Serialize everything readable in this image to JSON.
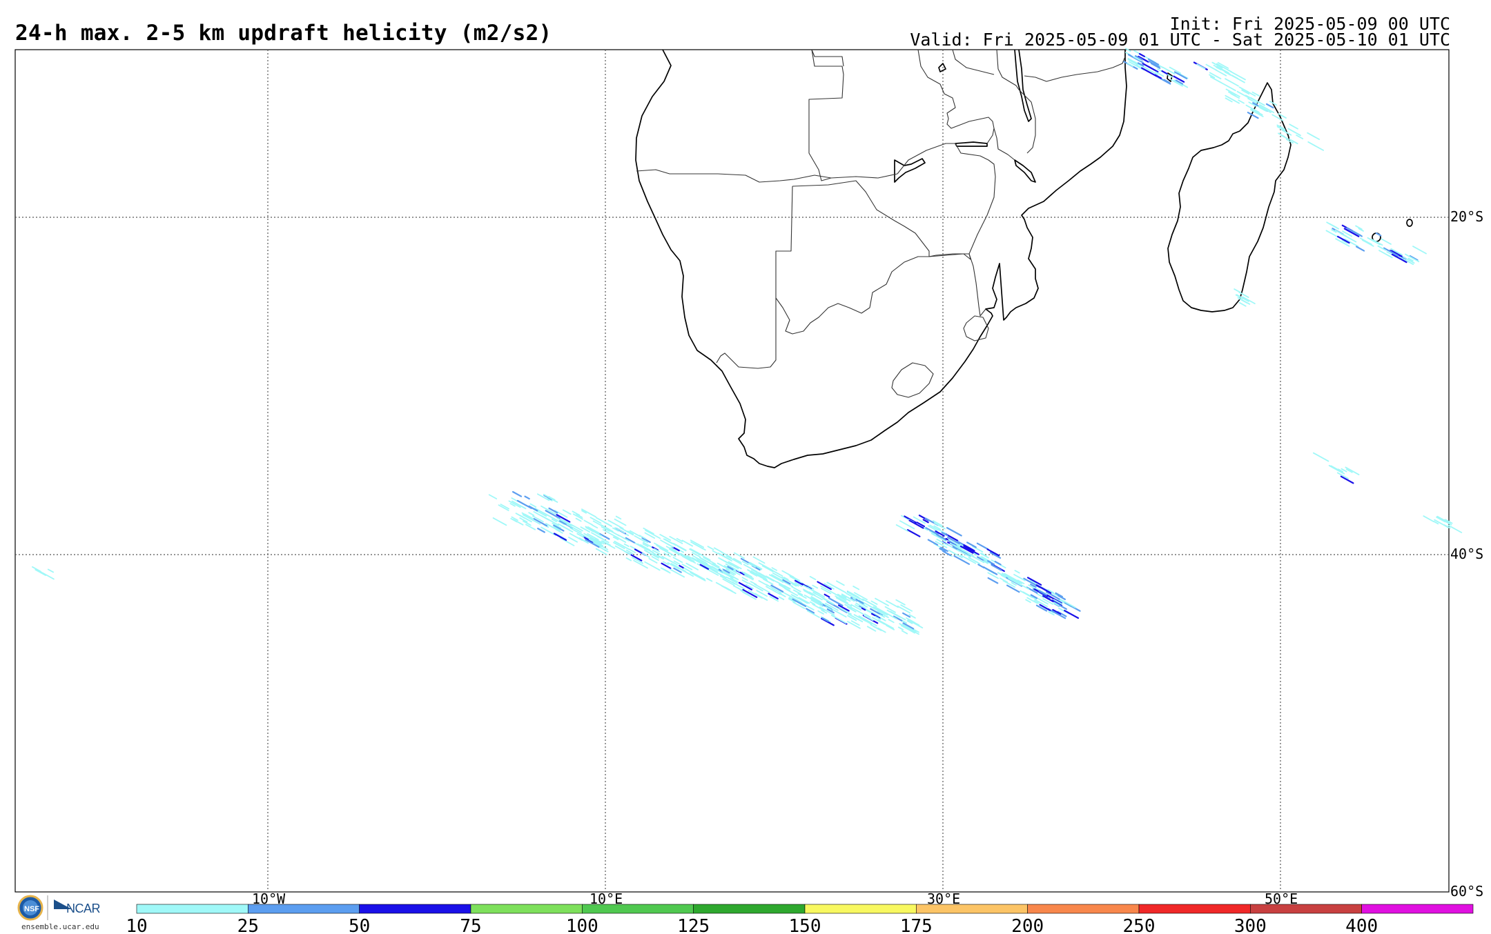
{
  "header": {
    "title": "24-h max. 2-5 km updraft helicity (m2/s2)",
    "init": "Init: Fri 2025-05-09 00 UTC",
    "valid": "Valid: Fri 2025-05-09 01 UTC - Sat 2025-05-10 01 UTC"
  },
  "map": {
    "lon_labels": [
      "10°W",
      "10°E",
      "30°E",
      "50°E"
    ],
    "lat_labels": [
      "20°S",
      "40°S",
      "60°S"
    ]
  },
  "colorbar": {
    "ticks": [
      "10",
      "25",
      "50",
      "75",
      "100",
      "125",
      "150",
      "175",
      "200",
      "250",
      "300",
      "400"
    ],
    "colors": [
      "#a0f8f8",
      "#5c9ef0",
      "#1a10e8",
      "#7ee05c",
      "#50c850",
      "#2ea82e",
      "#f8f860",
      "#fcc466",
      "#f8874c",
      "#f02828",
      "#c84040",
      "#e010e0"
    ]
  },
  "footer": {
    "org": "NCAR",
    "seal": "NSF",
    "url": "ensemble.ucar.edu"
  }
}
